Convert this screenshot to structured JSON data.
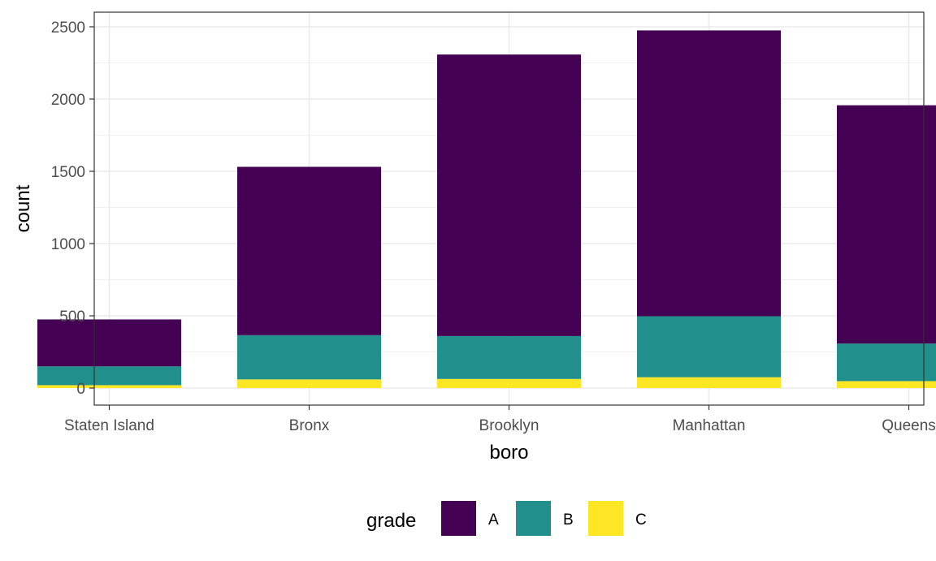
{
  "chart_data": {
    "type": "bar",
    "stacked": true,
    "xlabel": "boro",
    "ylabel": "count",
    "categories": [
      "Staten Island",
      "Bronx",
      "Brooklyn",
      "Manhattan",
      "Queens"
    ],
    "series": [
      {
        "name": "A",
        "color": "#440154",
        "values": [
          325,
          1165,
          1948,
          1978,
          1649
        ]
      },
      {
        "name": "B",
        "color": "#21908C",
        "values": [
          130,
          306,
          297,
          422,
          260
        ]
      },
      {
        "name": "C",
        "color": "#FDE725",
        "values": [
          20,
          60,
          63,
          75,
          48
        ]
      }
    ],
    "ylim": [
      0,
      2720
    ],
    "yticks": [
      0,
      500,
      1000,
      1500,
      2000,
      2500
    ],
    "grid": true,
    "legend": {
      "title": "grade",
      "position": "bottom"
    }
  }
}
